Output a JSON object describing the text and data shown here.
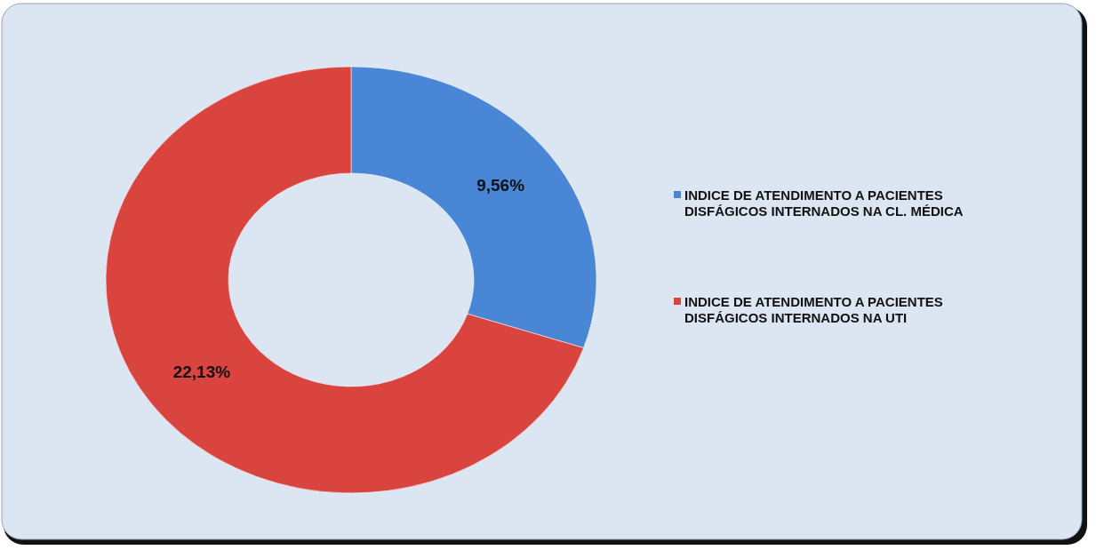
{
  "chart_data": {
    "type": "donut",
    "categories": [
      "INDICE DE ATENDIMENTO A PACIENTES DISFÁGICOS INTERNADOS NA CL. MÉDICA",
      "INDICE DE ATENDIMENTO A PACIENTES DISFÁGICOS INTERNADOS NA UTI"
    ],
    "values": [
      9.56,
      22.13
    ],
    "colors": [
      "#4a86d6",
      "#d9443f"
    ],
    "value_labels": [
      "9,56%",
      "22,13%"
    ],
    "legend": "right"
  }
}
